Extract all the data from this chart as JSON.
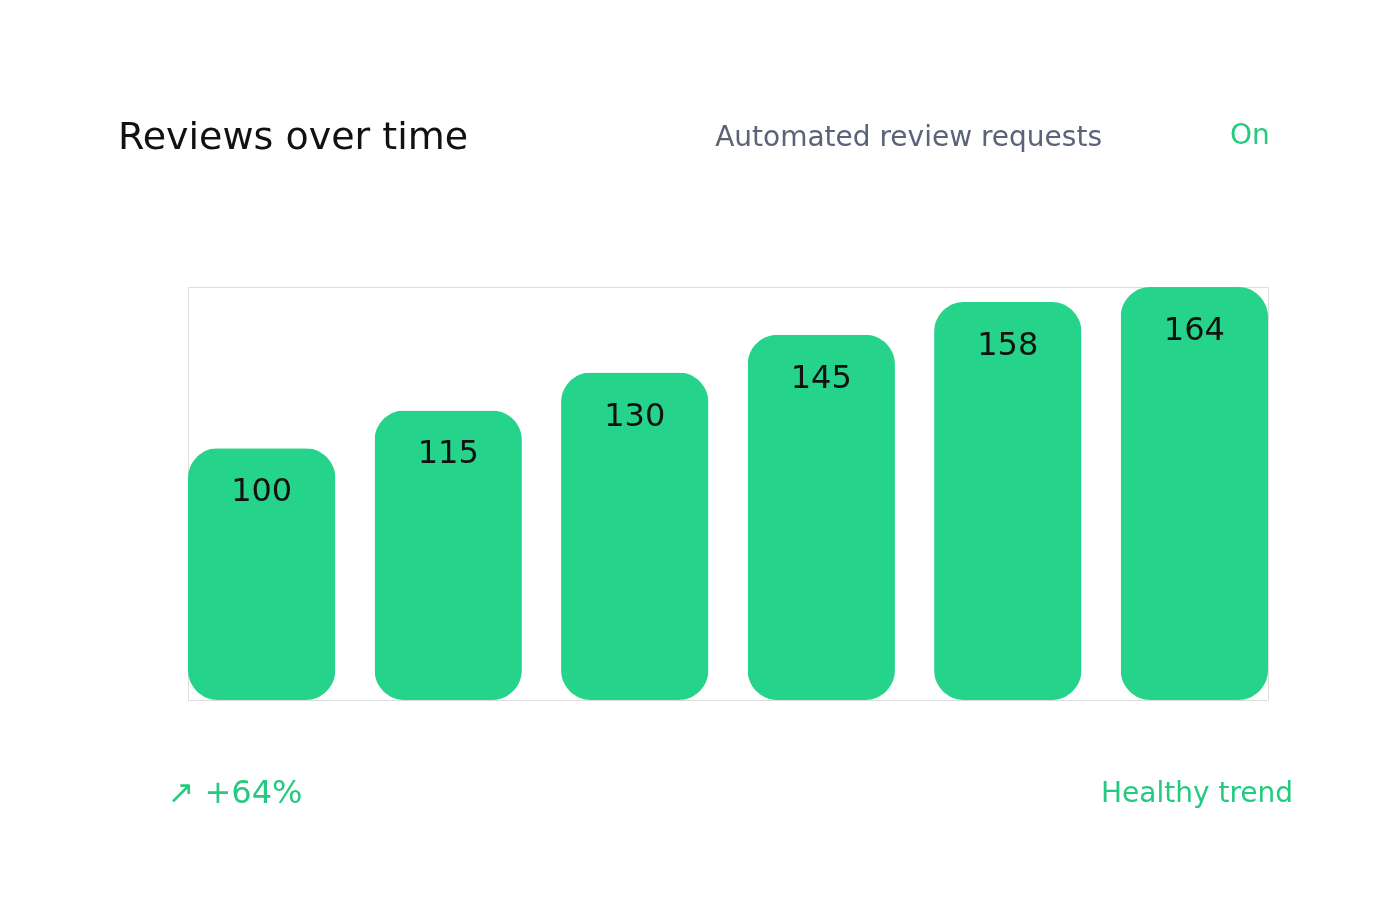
{
  "chart_data": {
    "type": "bar",
    "title": "Reviews over time",
    "categories": [
      null,
      null,
      null,
      null,
      null,
      null
    ],
    "values": [
      100,
      115,
      130,
      145,
      158,
      164
    ],
    "color": "#25d38b",
    "data_labels": true,
    "annotations": [
      "Automated review requests",
      "On",
      "↗ +64%",
      "Healthy trend"
    ]
  }
}
